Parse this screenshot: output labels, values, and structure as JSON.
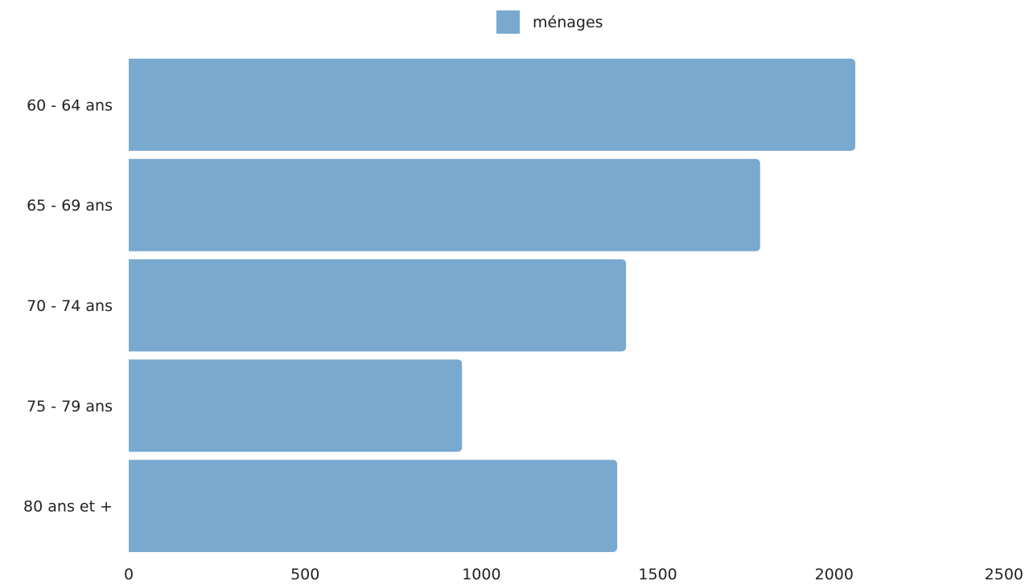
{
  "chart_data": {
    "type": "bar",
    "orientation": "horizontal",
    "categories": [
      "60 - 64 ans",
      "65 - 69 ans",
      "70 - 74 ans",
      "75 - 79 ans",
      "80 ans et +"
    ],
    "series": [
      {
        "name": "ménages",
        "color": "#7aa9d0",
        "values": [
          2060,
          1790,
          1410,
          945,
          1385
        ]
      }
    ],
    "xlim": [
      0,
      2500
    ],
    "x_ticks": [
      "0",
      "500",
      "1000",
      "1500",
      "2000",
      "2500"
    ],
    "title": "",
    "xlabel": "",
    "ylabel": "",
    "grid": false,
    "legend_position": "top-center"
  }
}
